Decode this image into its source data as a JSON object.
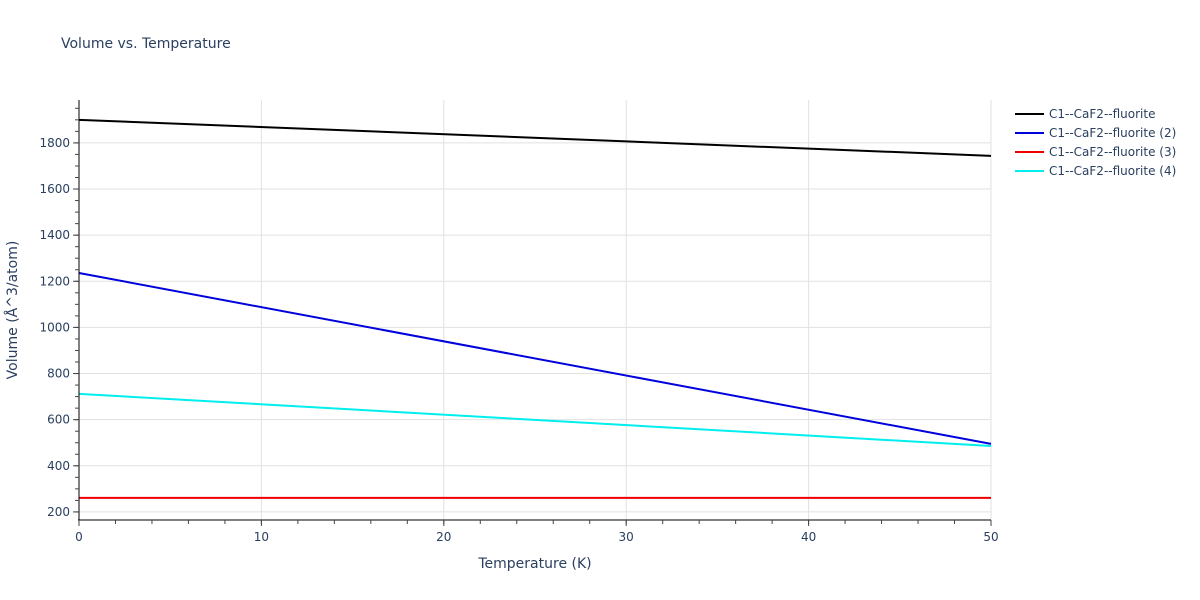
{
  "chart_data": {
    "type": "line",
    "title": "Volume vs. Temperature",
    "xlabel": "Temperature (K)",
    "ylabel": "Volume (Å^3/atom)",
    "xlim": [
      0,
      50
    ],
    "ylim": [
      165,
      1986
    ],
    "grid": true,
    "legend_position": "right-top",
    "x_ticks": [
      0,
      10,
      20,
      30,
      40,
      50
    ],
    "y_ticks": [
      200,
      400,
      600,
      800,
      1000,
      1200,
      1400,
      1600,
      1800
    ],
    "x": [
      0,
      50
    ],
    "series": [
      {
        "name": "C1--CaF2--fluorite",
        "color": "#000000",
        "values": [
          1900,
          1744
        ]
      },
      {
        "name": "C1--CaF2--fluorite (2)",
        "color": "#0000dd",
        "values": [
          1236,
          495
        ]
      },
      {
        "name": "C1--CaF2--fluorite (3)",
        "color": "#ee0000",
        "values": [
          261,
          261
        ]
      },
      {
        "name": "C1--CaF2--fluorite (4)",
        "color": "#00eeee",
        "values": [
          712,
          486
        ]
      }
    ]
  }
}
